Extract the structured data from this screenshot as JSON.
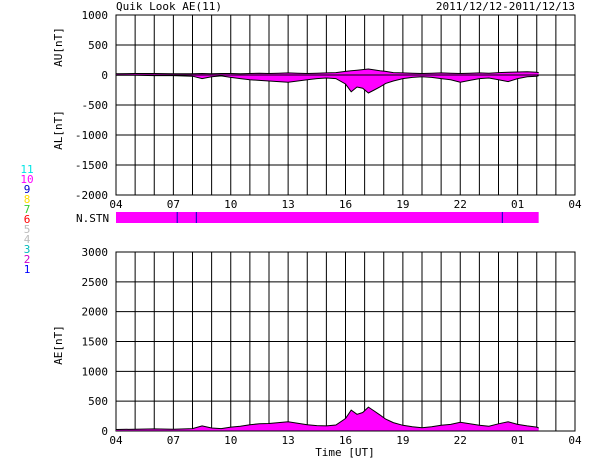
{
  "header": {
    "title": "Quik Look AE(11)",
    "date_range": "2011/12/12-2011/12/13"
  },
  "colors": {
    "fill": "#ff00ff",
    "line": "#000000",
    "grid": "#000000"
  },
  "station_legend": [
    {
      "label": "11",
      "color": "#00e5e5"
    },
    {
      "label": "10",
      "color": "#ff00ff"
    },
    {
      "label": "9",
      "color": "#0000cc"
    },
    {
      "label": "8",
      "color": "#ffdd00"
    },
    {
      "label": "7",
      "color": "#33cc33"
    },
    {
      "label": "6",
      "color": "#ff0000"
    },
    {
      "label": "5",
      "color": "#bbbbbb"
    },
    {
      "label": "4",
      "color": "#bbbbbb"
    },
    {
      "label": "3",
      "color": "#00bbbb"
    },
    {
      "label": "2",
      "color": "#cc00cc"
    },
    {
      "label": "1",
      "color": "#0000ff"
    }
  ],
  "chart_data": [
    {
      "type": "area",
      "panel": "AU/AL",
      "ylabel_top": "AU[nT]",
      "ylabel_bottom": "AL[nT]",
      "ylim": [
        -2000,
        1000
      ],
      "yticks": [
        "1000",
        "500",
        "0",
        "-500",
        "-1000",
        "-1500",
        "-2000"
      ],
      "xlim_hours_ut": [
        4,
        28
      ],
      "xticks": [
        "04",
        "07",
        "10",
        "13",
        "16",
        "19",
        "22",
        "01",
        "04"
      ],
      "grid": true,
      "series": [
        {
          "name": "AU",
          "x": [
            4.0,
            5,
            6,
            7,
            8,
            8.5,
            9,
            9.5,
            10,
            10.5,
            11,
            11.5,
            12,
            12.5,
            13,
            13.5,
            14,
            14.5,
            15,
            15.5,
            16,
            16.3,
            16.6,
            16.9,
            17.2,
            17.5,
            17.8,
            18.1,
            18.5,
            19,
            19.5,
            20,
            20.5,
            21,
            21.5,
            22,
            22.5,
            23,
            23.5,
            24,
            24.5,
            25,
            25.5,
            26,
            26.1
          ],
          "values": [
            20,
            25,
            25,
            20,
            20,
            25,
            20,
            25,
            25,
            20,
            25,
            30,
            25,
            30,
            35,
            30,
            25,
            30,
            35,
            40,
            60,
            70,
            80,
            90,
            100,
            85,
            70,
            60,
            40,
            35,
            30,
            25,
            30,
            35,
            30,
            25,
            30,
            35,
            30,
            40,
            45,
            50,
            55,
            45,
            40
          ]
        },
        {
          "name": "AL",
          "x": [
            4.0,
            5,
            6,
            7,
            8,
            8.5,
            9,
            9.5,
            10,
            10.5,
            11,
            11.5,
            12,
            12.5,
            13,
            13.5,
            14,
            14.5,
            15,
            15.5,
            16,
            16.3,
            16.6,
            16.9,
            17.2,
            17.5,
            17.8,
            18.1,
            18.5,
            19,
            19.5,
            20,
            20.5,
            21,
            21.5,
            22,
            22.5,
            23,
            23.5,
            24,
            24.5,
            25,
            25.5,
            26,
            26.1
          ],
          "values": [
            -5,
            -5,
            -10,
            -10,
            -20,
            -60,
            -30,
            -15,
            -40,
            -60,
            -80,
            -90,
            -100,
            -110,
            -120,
            -100,
            -80,
            -60,
            -50,
            -60,
            -150,
            -280,
            -200,
            -220,
            -300,
            -250,
            -200,
            -140,
            -100,
            -60,
            -40,
            -30,
            -40,
            -60,
            -80,
            -120,
            -90,
            -60,
            -50,
            -80,
            -110,
            -60,
            -30,
            -20,
            -10
          ]
        }
      ]
    },
    {
      "type": "area",
      "panel": "AE",
      "ylabel": "AE[nT]",
      "xlabel": "Time [UT]",
      "ylim": [
        0,
        3000
      ],
      "yticks": [
        "3000",
        "2500",
        "2000",
        "1500",
        "1000",
        "500",
        "0"
      ],
      "xlim_hours_ut": [
        4,
        28
      ],
      "xticks": [
        "04",
        "07",
        "10",
        "13",
        "16",
        "19",
        "22",
        "01",
        "04"
      ],
      "grid": true,
      "series": [
        {
          "name": "AE",
          "x": [
            4.0,
            5,
            6,
            7,
            8,
            8.5,
            9,
            9.5,
            10,
            10.5,
            11,
            11.5,
            12,
            12.5,
            13,
            13.5,
            14,
            14.5,
            15,
            15.5,
            16,
            16.3,
            16.6,
            16.9,
            17.2,
            17.5,
            17.8,
            18.1,
            18.5,
            19,
            19.5,
            20,
            20.5,
            21,
            21.5,
            22,
            22.5,
            23,
            23.5,
            24,
            24.5,
            25,
            25.5,
            26,
            26.1
          ],
          "values": [
            25,
            30,
            35,
            30,
            40,
            85,
            50,
            40,
            65,
            80,
            105,
            120,
            125,
            140,
            155,
            130,
            105,
            90,
            85,
            100,
            210,
            350,
            280,
            310,
            400,
            335,
            270,
            200,
            140,
            95,
            70,
            55,
            70,
            95,
            110,
            145,
            120,
            95,
            80,
            120,
            155,
            110,
            85,
            65,
            50
          ]
        }
      ]
    }
  ],
  "nstn": {
    "label": "N.STN",
    "x_start": 4.0,
    "x_end": 26.1,
    "markers": [
      7.2,
      8.2,
      24.2
    ],
    "color": "#ff00ff"
  }
}
